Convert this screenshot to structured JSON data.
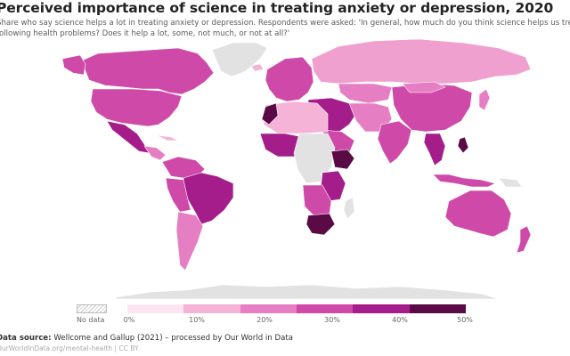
{
  "title": "Perceived importance of science in treating anxiety or depression, 2020",
  "subtitle_line1": "Share who say science helps a lot in treating anxiety or depression. Respondents were asked: 'In general, how much do you think science helps us treat the",
  "subtitle_line2": "following health problems? Does it help a lot, some, not much, or not at all?'",
  "legend": {
    "no_data_label": "No data",
    "ticks": [
      "0%",
      "10%",
      "20%",
      "30%",
      "40%",
      "50%"
    ],
    "colors": [
      "#fde6f1",
      "#f5b3d7",
      "#e67ec3",
      "#cf4aa8",
      "#a41d8a",
      "#5a0a45"
    ],
    "no_data_color": "#e2e2e2"
  },
  "source_label": "Data source:",
  "source_text": "Wellcome and Gallup (2021) – processed by Our World in Data",
  "url": "OurWorldInData.org/mental-health | CC BY",
  "map_data": {
    "regions": [
      {
        "name": "Canada",
        "color": "#cf4aa8"
      },
      {
        "name": "United States",
        "color": "#cf4aa8"
      },
      {
        "name": "Mexico",
        "color": "#a41d8a"
      },
      {
        "name": "Brazil",
        "color": "#a41d8a"
      },
      {
        "name": "Russia",
        "color": "#f0a0cf"
      },
      {
        "name": "China",
        "color": "#cf4aa8"
      },
      {
        "name": "India",
        "color": "#cf4aa8"
      },
      {
        "name": "Australia",
        "color": "#cf4aa8"
      },
      {
        "name": "South Africa",
        "color": "#5a0a45"
      },
      {
        "name": "Ethiopia",
        "color": "#5a0a45"
      },
      {
        "name": "Greenland",
        "color": "#e2e2e2"
      },
      {
        "name": "Antarctica",
        "color": "#e2e2e2"
      }
    ]
  }
}
